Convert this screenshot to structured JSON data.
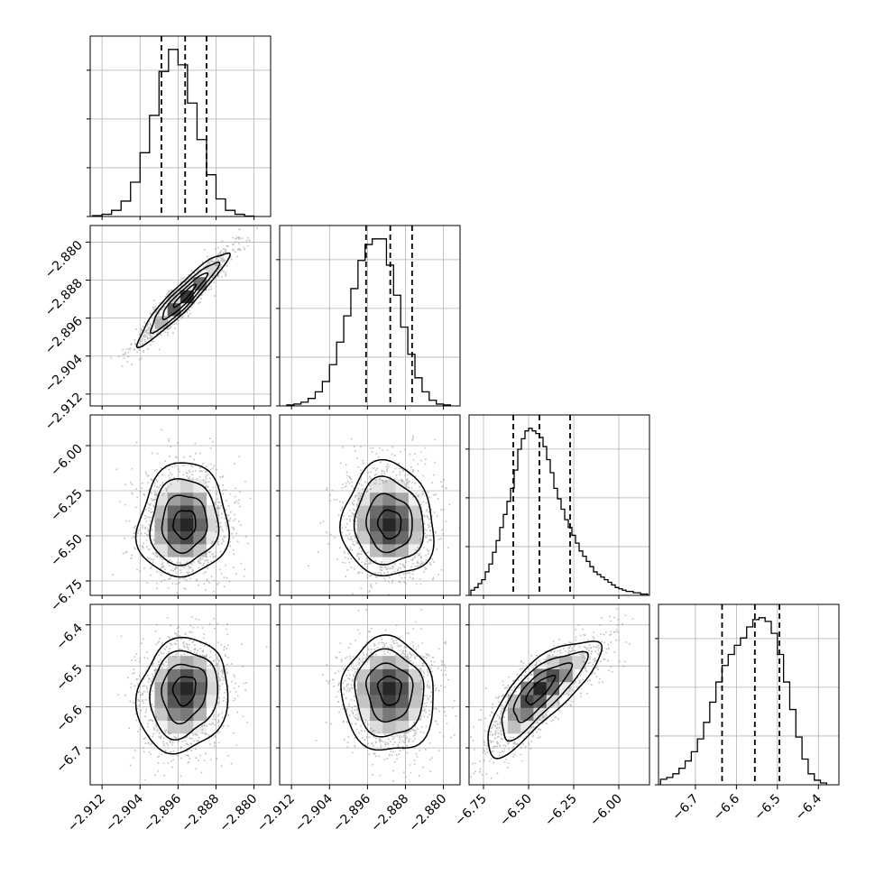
{
  "chart_data": {
    "type": "corner",
    "title": "",
    "parameters": [
      {
        "range": [
          -2.9145,
          -2.8765
        ],
        "ticks": [
          -2.912,
          -2.904,
          -2.896,
          -2.888,
          -2.88
        ],
        "tick_labels": [
          "−2.912",
          "−2.904",
          "−2.896",
          "−2.888",
          "−2.880"
        ],
        "quantiles": [
          -2.8995,
          -2.8945,
          -2.89
        ],
        "hist_bins": [
          -2.914,
          -2.912,
          -2.91,
          -2.908,
          -2.906,
          -2.904,
          -2.902,
          -2.9,
          -2.898,
          -2.896,
          -2.894,
          -2.892,
          -2.89,
          -2.888,
          -2.886,
          -2.884,
          -2.882,
          -2.88
        ],
        "hist_counts": [
          2,
          5,
          14,
          35,
          78,
          145,
          230,
          330,
          380,
          345,
          258,
          175,
          95,
          40,
          14,
          5,
          1
        ]
      },
      {
        "range": [
          -2.9145,
          -2.8765
        ],
        "ticks": [
          -2.912,
          -2.904,
          -2.896,
          -2.888,
          -2.88
        ],
        "tick_labels": [
          "−2.912",
          "−2.904",
          "−2.896",
          "−2.888",
          "−2.880"
        ],
        "quantiles": [
          -2.8963,
          -2.8912,
          -2.8866
        ],
        "hist_bins": [
          -2.913,
          -2.9115,
          -2.91,
          -2.9085,
          -2.907,
          -2.9055,
          -2.904,
          -2.9025,
          -2.901,
          -2.8995,
          -2.898,
          -2.8965,
          -2.895,
          -2.8935,
          -2.892,
          -2.8905,
          -2.889,
          -2.8875,
          -2.886,
          -2.8845,
          -2.883,
          -2.8815,
          -2.88,
          -2.8785
        ],
        "hist_counts": [
          1,
          2,
          4,
          8,
          15,
          26,
          44,
          68,
          96,
          125,
          155,
          172,
          178,
          178,
          150,
          118,
          84,
          55,
          30,
          15,
          6,
          2,
          1
        ]
      },
      {
        "range": [
          -6.83,
          -5.83
        ],
        "ticks": [
          -6.75,
          -6.5,
          -6.25,
          -6.0
        ],
        "tick_labels": [
          "−6.75",
          "−6.50",
          "−6.25",
          "−6.00"
        ],
        "quantiles": [
          -6.585,
          -6.44,
          -6.27
        ],
        "hist_bins": [
          -6.82,
          -6.8,
          -6.78,
          -6.76,
          -6.74,
          -6.72,
          -6.7,
          -6.68,
          -6.66,
          -6.64,
          -6.62,
          -6.6,
          -6.58,
          -6.56,
          -6.54,
          -6.52,
          -6.5,
          -6.48,
          -6.46,
          -6.44,
          -6.42,
          -6.4,
          -6.38,
          -6.36,
          -6.34,
          -6.32,
          -6.3,
          -6.28,
          -6.26,
          -6.24,
          -6.22,
          -6.2,
          -6.18,
          -6.16,
          -6.14,
          -6.12,
          -6.1,
          -6.08,
          -6.06,
          -6.04,
          -6.02,
          -6.0,
          -5.98,
          -5.96,
          -5.94,
          -5.92,
          -5.9,
          -5.88,
          -5.86,
          -5.84
        ],
        "hist_counts": [
          4,
          6,
          9,
          12,
          18,
          24,
          33,
          42,
          52,
          62,
          72,
          82,
          96,
          112,
          120,
          126,
          128,
          126,
          124,
          121,
          114,
          104,
          94,
          82,
          74,
          66,
          58,
          52,
          46,
          40,
          34,
          30,
          26,
          22,
          18,
          16,
          14,
          12,
          10,
          8,
          6,
          5,
          4,
          3,
          3,
          2,
          2,
          1,
          1
        ]
      },
      {
        "range": [
          -6.79,
          -6.35
        ],
        "ticks": [
          -6.7,
          -6.6,
          -6.5,
          -6.4
        ],
        "tick_labels": [
          "−6.7",
          "−6.6",
          "−6.5",
          "−6.4"
        ],
        "quantiles": [
          -6.635,
          -6.555,
          -6.495
        ],
        "hist_bins": [
          -6.785,
          -6.77,
          -6.755,
          -6.74,
          -6.725,
          -6.71,
          -6.695,
          -6.68,
          -6.665,
          -6.65,
          -6.635,
          -6.62,
          -6.605,
          -6.59,
          -6.575,
          -6.56,
          -6.545,
          -6.53,
          -6.515,
          -6.5,
          -6.485,
          -6.47,
          -6.455,
          -6.44,
          -6.425,
          -6.41,
          -6.395,
          -6.38
        ],
        "hist_counts": [
          6,
          8,
          12,
          18,
          26,
          36,
          50,
          68,
          90,
          112,
          130,
          142,
          152,
          160,
          172,
          180,
          182,
          178,
          165,
          142,
          112,
          82,
          52,
          28,
          12,
          5,
          2
        ]
      }
    ],
    "correlations": [
      {
        "row": 1,
        "col": 0,
        "corr": 0.94
      },
      {
        "row": 2,
        "col": 0,
        "corr": 0.05
      },
      {
        "row": 2,
        "col": 1,
        "corr": -0.05
      },
      {
        "row": 3,
        "col": 0,
        "corr": 0.12
      },
      {
        "row": 3,
        "col": 1,
        "corr": -0.05
      },
      {
        "row": 3,
        "col": 2,
        "corr": 0.8
      }
    ],
    "contour_sigma_levels": [
      0.5,
      1.0,
      1.5,
      2.0
    ],
    "grid": true,
    "colors": {
      "line": "#000000",
      "scatter": "#8c8c8c",
      "grid": "#b0b0b0"
    }
  }
}
